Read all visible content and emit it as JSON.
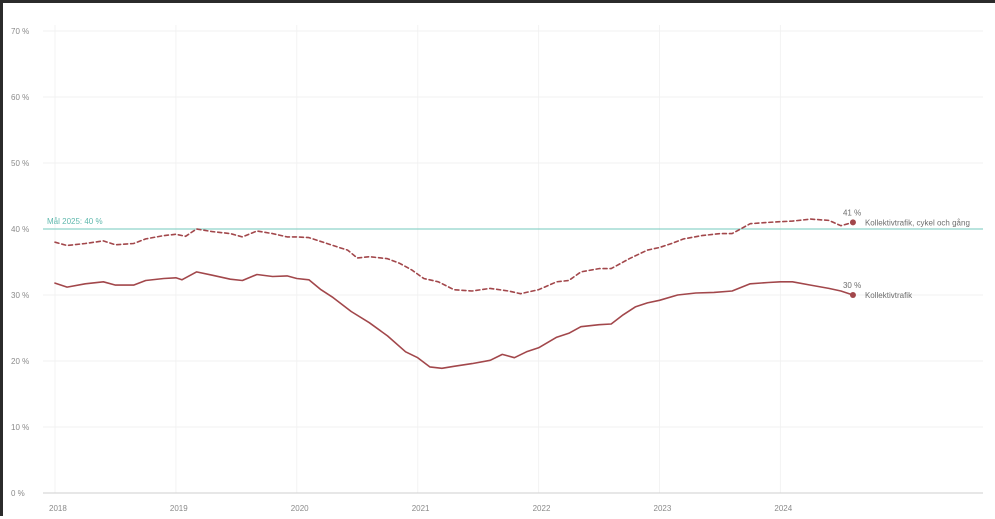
{
  "chart_data": {
    "type": "line",
    "title": "",
    "xlabel": "",
    "ylabel": "",
    "xlim": [
      2018,
      2024.65
    ],
    "ylim": [
      0,
      70
    ],
    "y_ticks": [
      "0 %",
      "10 %",
      "20 %",
      "30 %",
      "40 %",
      "50 %",
      "60 %",
      "70 %"
    ],
    "x_ticks": [
      {
        "label": "2018",
        "x": 2018
      },
      {
        "label": "2019",
        "x": 2019
      },
      {
        "label": "2020",
        "x": 2020
      },
      {
        "label": "2021",
        "x": 2021
      },
      {
        "label": "2022",
        "x": 2022
      },
      {
        "label": "2023",
        "x": 2023
      },
      {
        "label": "2024",
        "x": 2024
      }
    ],
    "grid": true,
    "target_line": {
      "label": "Mål 2025: 40 %",
      "value": 40,
      "color": "#8fd3c9"
    },
    "series": [
      {
        "name": "Kollektivtrafik, cykel och gång",
        "style": "dashed",
        "color": "#a2474b",
        "end_label": "41 %",
        "x": [
          2018.0,
          2018.1,
          2018.25,
          2018.4,
          2018.5,
          2018.65,
          2018.75,
          2018.9,
          2019.0,
          2019.08,
          2019.17,
          2019.3,
          2019.45,
          2019.55,
          2019.67,
          2019.8,
          2019.92,
          2020.0,
          2020.1,
          2020.25,
          2020.35,
          2020.42,
          2020.5,
          2020.6,
          2020.75,
          2020.85,
          2020.95,
          2021.05,
          2021.17,
          2021.3,
          2021.45,
          2021.6,
          2021.75,
          2021.85,
          2022.0,
          2022.15,
          2022.25,
          2022.35,
          2022.5,
          2022.6,
          2022.75,
          2022.9,
          2023.0,
          2023.1,
          2023.2,
          2023.35,
          2023.5,
          2023.6,
          2023.75,
          2023.9,
          2024.0,
          2024.1,
          2024.25,
          2024.4,
          2024.5,
          2024.6
        ],
        "values": [
          38.0,
          37.5,
          37.8,
          38.2,
          37.6,
          37.8,
          38.5,
          39.0,
          39.2,
          38.9,
          40.0,
          39.6,
          39.3,
          38.8,
          39.7,
          39.3,
          38.8,
          38.8,
          38.7,
          37.8,
          37.2,
          36.8,
          35.6,
          35.8,
          35.5,
          34.8,
          33.8,
          32.5,
          32.0,
          30.8,
          30.6,
          31.0,
          30.6,
          30.2,
          30.8,
          32.0,
          32.2,
          33.5,
          34.0,
          34.0,
          35.5,
          36.8,
          37.2,
          37.8,
          38.5,
          39.0,
          39.3,
          39.3,
          40.8,
          41.0,
          41.1,
          41.2,
          41.5,
          41.3,
          40.5,
          41.0
        ]
      },
      {
        "name": "Kollektivtrafik",
        "style": "solid",
        "color": "#a2474b",
        "end_label": "30 %",
        "x": [
          2018.0,
          2018.1,
          2018.25,
          2018.4,
          2018.5,
          2018.65,
          2018.75,
          2018.9,
          2019.0,
          2019.05,
          2019.17,
          2019.3,
          2019.45,
          2019.55,
          2019.67,
          2019.8,
          2019.92,
          2020.0,
          2020.1,
          2020.2,
          2020.3,
          2020.45,
          2020.6,
          2020.75,
          2020.9,
          2021.0,
          2021.1,
          2021.2,
          2021.3,
          2021.45,
          2021.6,
          2021.7,
          2021.8,
          2021.9,
          2022.0,
          2022.15,
          2022.25,
          2022.35,
          2022.5,
          2022.6,
          2022.7,
          2022.8,
          2022.9,
          2023.0,
          2023.15,
          2023.3,
          2023.45,
          2023.6,
          2023.75,
          2023.9,
          2024.0,
          2024.1,
          2024.25,
          2024.4,
          2024.5,
          2024.6
        ],
        "values": [
          31.8,
          31.2,
          31.7,
          32.0,
          31.5,
          31.5,
          32.2,
          32.5,
          32.6,
          32.3,
          33.5,
          33.0,
          32.4,
          32.2,
          33.1,
          32.8,
          32.9,
          32.5,
          32.3,
          30.8,
          29.6,
          27.5,
          25.8,
          23.8,
          21.4,
          20.5,
          19.1,
          18.9,
          19.2,
          19.6,
          20.1,
          21.0,
          20.5,
          21.4,
          22.0,
          23.6,
          24.2,
          25.2,
          25.5,
          25.6,
          27.0,
          28.2,
          28.8,
          29.2,
          30.0,
          30.3,
          30.4,
          30.6,
          31.7,
          31.9,
          32.0,
          32.0,
          31.5,
          31.0,
          30.6,
          30.0
        ]
      }
    ]
  }
}
